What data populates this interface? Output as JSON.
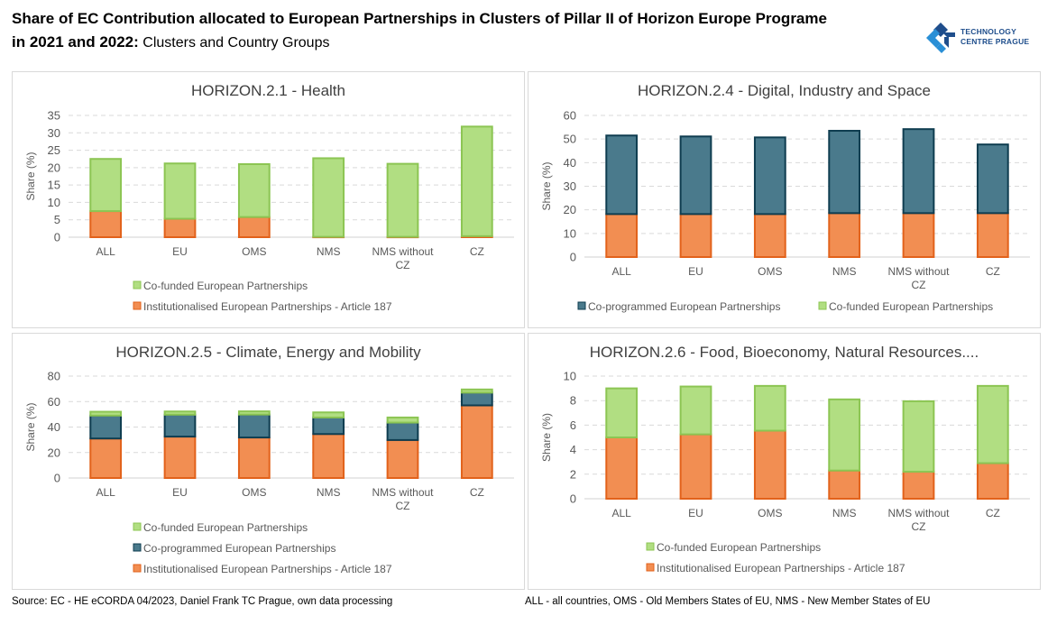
{
  "header": {
    "title_line1": "Share of EC Contribution allocated to European Partnerships in Clusters of Pillar II of Horizon Europe Programe",
    "title_line2_bold": "in 2021 and 2022:",
    "title_line2_rest": " Clusters and Country Groups"
  },
  "logo": {
    "line1": "TECHNOLOGY",
    "line2": "CENTRE PRAGUE",
    "colors": {
      "light": "#2a8fd6",
      "dark": "#1f4e8c"
    }
  },
  "footer": {
    "source": "Source: EC - HE eCORDA 04/2023, Daniel Frank TC Prague, own data processing",
    "note": "ALL - all countries, OMS - Old Members States of EU, NMS - New Member States of EU"
  },
  "colors": {
    "institutionalised_fill": "#f28e52",
    "institutionalised_stroke": "#e2621b",
    "coprogrammed_fill": "#4a7a8c",
    "coprogrammed_stroke": "#0f3d50",
    "cofunded_fill": "#b1de82",
    "cofunded_stroke": "#8cc553"
  },
  "chart_data": [
    {
      "id": "health",
      "type": "bar",
      "stacked": true,
      "title": "HORIZON.2.1 - Health",
      "ylabel": "Share (%)",
      "xlabel": "",
      "ylim": [
        0,
        35
      ],
      "yticks": [
        0,
        5,
        10,
        15,
        20,
        25,
        30,
        35
      ],
      "grid": true,
      "categories": [
        "ALL",
        "EU",
        "OMS",
        "NMS",
        "NMS without CZ",
        "CZ"
      ],
      "category_lines": [
        [
          "ALL"
        ],
        [
          "EU"
        ],
        [
          "OMS"
        ],
        [
          "NMS"
        ],
        [
          "NMS without",
          "CZ"
        ],
        [
          "CZ"
        ]
      ],
      "series": [
        {
          "name": "Institutionalised European Partnerships  - Article 187",
          "key": "institutionalised",
          "values": [
            7.5,
            5.3,
            5.8,
            0.1,
            0.1,
            0.3
          ]
        },
        {
          "name": "Co-funded European Partnerships",
          "key": "cofunded",
          "values": [
            15.0,
            15.9,
            15.2,
            22.6,
            21.0,
            31.5
          ]
        }
      ],
      "legend": [
        {
          "name": "Co-funded European Partnerships",
          "key": "cofunded"
        },
        {
          "name": "Institutionalised European Partnerships  - Article 187",
          "key": "institutionalised"
        }
      ],
      "legend_position": "bottom"
    },
    {
      "id": "digital",
      "type": "bar",
      "stacked": true,
      "title": "HORIZON.2.4 - Digital, Industry and Space",
      "ylabel": "Share (%)",
      "xlabel": "",
      "ylim": [
        0,
        60
      ],
      "yticks": [
        0,
        10,
        20,
        30,
        40,
        50,
        60
      ],
      "grid": true,
      "categories": [
        "ALL",
        "EU",
        "OMS",
        "NMS",
        "NMS without CZ",
        "CZ"
      ],
      "category_lines": [
        [
          "ALL"
        ],
        [
          "EU"
        ],
        [
          "OMS"
        ],
        [
          "NMS"
        ],
        [
          "NMS without",
          "CZ"
        ],
        [
          "CZ"
        ]
      ],
      "series": [
        {
          "name": "Institutionalised European Partnerships  - Article 187",
          "key": "institutionalised",
          "values": [
            18.2,
            18.2,
            18.2,
            18.6,
            18.6,
            18.6
          ]
        },
        {
          "name": "Co-programmed European Partnerships",
          "key": "coprogrammed",
          "values": [
            33.3,
            32.9,
            32.5,
            34.9,
            35.6,
            29.1
          ]
        },
        {
          "name": "Co-funded European Partnerships",
          "key": "cofunded",
          "values": [
            0,
            0,
            0,
            0,
            0,
            0
          ]
        }
      ],
      "legend": [
        {
          "name": "Co-programmed European Partnerships",
          "key": "coprogrammed"
        },
        {
          "name": "Co-funded European Partnerships",
          "key": "cofunded"
        }
      ],
      "legend_position": "bottom"
    },
    {
      "id": "climate",
      "type": "bar",
      "stacked": true,
      "title": "HORIZON.2.5 - Climate, Energy and Mobility",
      "ylabel": "Share (%)",
      "xlabel": "",
      "ylim": [
        0,
        80
      ],
      "yticks": [
        0,
        20,
        40,
        60,
        80
      ],
      "grid": true,
      "categories": [
        "ALL",
        "EU",
        "OMS",
        "NMS",
        "NMS without CZ",
        "CZ"
      ],
      "category_lines": [
        [
          "ALL"
        ],
        [
          "EU"
        ],
        [
          "OMS"
        ],
        [
          "NMS"
        ],
        [
          "NMS without",
          "CZ"
        ],
        [
          "CZ"
        ]
      ],
      "series": [
        {
          "name": "Institutionalised European Partnerships  - Article 187",
          "key": "institutionalised",
          "values": [
            31.0,
            32.5,
            31.8,
            34.5,
            29.8,
            57.0
          ]
        },
        {
          "name": "Co-programmed European Partnerships",
          "key": "coprogrammed",
          "values": [
            18.0,
            17.2,
            18.0,
            13.0,
            13.7,
            10.0
          ]
        },
        {
          "name": "Co-funded European Partnerships",
          "key": "cofunded",
          "values": [
            3.0,
            2.5,
            2.5,
            4.0,
            4.0,
            2.5
          ]
        }
      ],
      "legend": [
        {
          "name": "Co-funded European Partnerships",
          "key": "cofunded"
        },
        {
          "name": "Co-programmed European Partnerships",
          "key": "coprogrammed"
        },
        {
          "name": "Institutionalised European Partnerships  - Article 187",
          "key": "institutionalised"
        }
      ],
      "legend_position": "bottom"
    },
    {
      "id": "food",
      "type": "bar",
      "stacked": true,
      "title": "HORIZON.2.6 - Food, Bioeconomy, Natural Resources....",
      "ylabel": "Share (%)",
      "xlabel": "",
      "ylim": [
        0,
        10
      ],
      "yticks": [
        0,
        2,
        4,
        6,
        8,
        10
      ],
      "grid": true,
      "categories": [
        "ALL",
        "EU",
        "OMS",
        "NMS",
        "NMS without CZ",
        "CZ"
      ],
      "category_lines": [
        [
          "ALL"
        ],
        [
          "EU"
        ],
        [
          "OMS"
        ],
        [
          "NMS"
        ],
        [
          "NMS without",
          "CZ"
        ],
        [
          "CZ"
        ]
      ],
      "series": [
        {
          "name": "Institutionalised European Partnerships  - Article 187",
          "key": "institutionalised",
          "values": [
            5.0,
            5.25,
            5.55,
            2.3,
            2.2,
            2.9
          ]
        },
        {
          "name": "Co-funded European Partnerships",
          "key": "cofunded",
          "values": [
            4.0,
            3.9,
            3.65,
            5.8,
            5.75,
            6.3
          ]
        }
      ],
      "legend": [
        {
          "name": "Co-funded European Partnerships",
          "key": "cofunded"
        },
        {
          "name": "Institutionalised European Partnerships  - Article 187",
          "key": "institutionalised"
        }
      ],
      "legend_position": "bottom"
    }
  ]
}
